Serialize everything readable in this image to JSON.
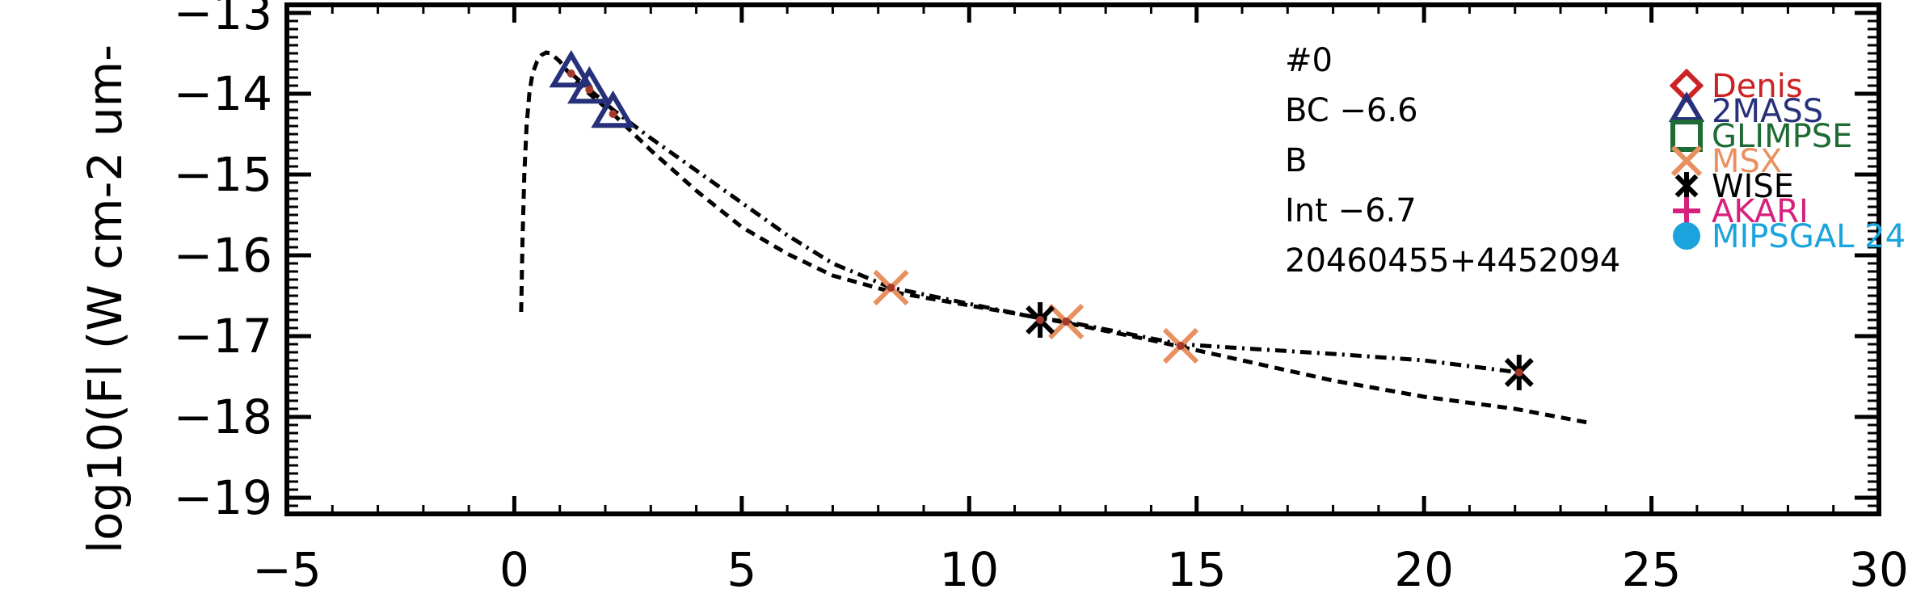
{
  "chart_data": {
    "type": "scatter",
    "ylabel": "log10(Fl (W cm-2 um-",
    "xlim": [
      -5,
      30
    ],
    "ylim": [
      -19.2,
      -12.9
    ],
    "x_ticks": [
      -5,
      0,
      5,
      10,
      15,
      20,
      25,
      30
    ],
    "x_tick_labels": [
      "−5",
      "0",
      "5",
      "10",
      "15",
      "20",
      "25",
      "30"
    ],
    "y_ticks": [
      -13,
      -14,
      -15,
      -16,
      -17,
      -18,
      -19
    ],
    "y_tick_labels": [
      "−13",
      "−14",
      "−15",
      "−16",
      "−17",
      "−18",
      "−19"
    ],
    "annotations": [
      "#0",
      "BC  −6.6",
      "B",
      "Int  −6.7",
      "20460455+4452094"
    ],
    "legend": [
      {
        "label": "Denis",
        "color": "#cc2222",
        "marker": "diamond"
      },
      {
        "label": "2MASS",
        "color": "#27307a",
        "marker": "triangle"
      },
      {
        "label": "GLIMPSE",
        "color": "#1e6b34",
        "marker": "square"
      },
      {
        "label": "MSX",
        "color": "#e8905f",
        "marker": "x"
      },
      {
        "label": "WISE",
        "color": "#000000",
        "marker": "asterisk"
      },
      {
        "label": "AKARI",
        "color": "#d6207b",
        "marker": "plus"
      },
      {
        "label": "MIPSGAL 24",
        "color": "#1aa3dd",
        "marker": "circle"
      }
    ],
    "series": [
      {
        "name": "2MASS",
        "marker": "triangle",
        "color": "#27307a",
        "x": [
          1.25,
          1.65,
          2.17
        ],
        "y": [
          -13.75,
          -13.95,
          -14.25
        ]
      },
      {
        "name": "MSX",
        "marker": "x",
        "color": "#e8905f",
        "x": [
          8.28,
          12.13,
          14.65
        ],
        "y": [
          -16.4,
          -16.82,
          -17.12
        ]
      },
      {
        "name": "WISE",
        "marker": "asterisk",
        "color": "#000000",
        "x": [
          11.56,
          22.09
        ],
        "y": [
          -16.8,
          -17.45
        ]
      },
      {
        "name": "model_dashed",
        "style": "dashed",
        "color": "#000000",
        "x": [
          0.15,
          0.18,
          0.22,
          0.27,
          0.33,
          0.4,
          0.5,
          0.6,
          0.7,
          0.8,
          1.0,
          1.25,
          1.65,
          2.17,
          3.0,
          4.0,
          5.0,
          6.0,
          7.0,
          8.28,
          10.0,
          12.0,
          14.0,
          16.0,
          18.0,
          20.0,
          22.0,
          23.7
        ],
        "y": [
          -16.7,
          -15.8,
          -15.0,
          -14.4,
          -14.0,
          -13.75,
          -13.6,
          -13.52,
          -13.49,
          -13.5,
          -13.6,
          -13.78,
          -14.0,
          -14.25,
          -14.7,
          -15.2,
          -15.65,
          -15.98,
          -16.25,
          -16.45,
          -16.62,
          -16.82,
          -17.05,
          -17.3,
          -17.55,
          -17.75,
          -17.9,
          -18.08
        ]
      },
      {
        "name": "model_dashdot",
        "style": "dashdot",
        "color": "#000000",
        "x": [
          1.25,
          2.17,
          3.0,
          4.0,
          5.0,
          6.0,
          7.0,
          8.28,
          10.0,
          11.56,
          12.13,
          14.65,
          16.0,
          18.0,
          20.0,
          22.09
        ],
        "y": [
          -13.75,
          -14.2,
          -14.55,
          -14.95,
          -15.35,
          -15.75,
          -16.1,
          -16.4,
          -16.6,
          -16.78,
          -16.82,
          -17.1,
          -17.15,
          -17.22,
          -17.3,
          -17.45
        ]
      }
    ]
  }
}
